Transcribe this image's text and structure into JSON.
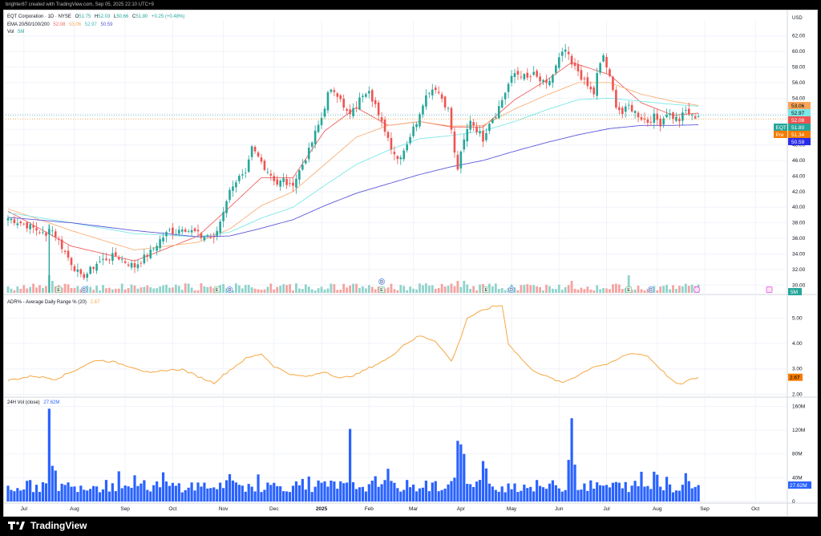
{
  "header": {
    "attribution": "brighter87 created with TradingView.com, Sep 05, 2025 22:10 UTC+9"
  },
  "footer": {
    "brand": "TradingView"
  },
  "colors": {
    "up": "#26a69a",
    "down": "#ef5350",
    "ema20": "#f0625d",
    "ema50": "#f8b07a",
    "ema100": "#7ee7e7",
    "ema200": "#5b57d9",
    "vol_up": "#8fd3cb",
    "vol_down": "#f5a3a0",
    "adr": "#f5a742",
    "vol24": "#2962ff"
  },
  "chart_data": [
    {
      "type": "candlestick",
      "legend": {
        "symbol_line": "EQT Corporation · 1D · NYSE",
        "ohlc": [
          {
            "key": "O",
            "value": "51.75"
          },
          {
            "key": "H",
            "value": "52.03"
          },
          {
            "key": "L",
            "value": "50.66"
          },
          {
            "key": "C",
            "value": "51.80"
          },
          {
            "key": "",
            "value": "+0.25 (+0.48%)"
          }
        ],
        "ema_label": "EMA 20/50/100/200",
        "ema_values": [
          {
            "value": "52.08",
            "color": "#f0625d"
          },
          {
            "value": "53.06",
            "color": "#f8b07a"
          },
          {
            "value": "52.97",
            "color": "#7ee7e7"
          },
          {
            "value": "50.59",
            "color": "#5b57d9"
          }
        ],
        "vol_label": "Vol",
        "vol_value": "5M"
      },
      "currency": "USD",
      "y_ticks": [
        62,
        60,
        58,
        56,
        54,
        52,
        50,
        48,
        46,
        44,
        42,
        40,
        38,
        36,
        34,
        32,
        30
      ],
      "ylim": [
        29,
        63
      ],
      "price_labels": [
        {
          "text": "53.06",
          "value": 53.06,
          "bg": "#f8a55a",
          "fg": "#000000"
        },
        {
          "text": "52.97",
          "value": 52.97,
          "bg": "#7ee7e7",
          "fg": "#000000"
        },
        {
          "text": "52.08",
          "value": 52.08,
          "bg": "#ef5350",
          "fg": "#ffffff"
        },
        {
          "text": "51.80",
          "value": 51.8,
          "bg": "#26a69a",
          "fg": "#ffffff",
          "tag": "EQT"
        },
        {
          "text": "51.34",
          "value": 51.34,
          "bg": "#f57c00",
          "fg": "#ffffff",
          "tag": "Pre"
        },
        {
          "text": "50.59",
          "value": 50.59,
          "bg": "#2a2aeb",
          "fg": "#ffffff"
        }
      ],
      "volume_label": "5M",
      "anchors": [
        [
          0,
          38.6
        ],
        [
          4,
          38.0
        ],
        [
          8,
          37.3
        ],
        [
          10,
          36.9
        ],
        [
          12,
          36.2
        ],
        [
          13,
          37.6
        ],
        [
          15,
          36.4
        ],
        [
          18,
          34.2
        ],
        [
          21,
          32.2
        ],
        [
          23,
          31.0
        ],
        [
          25,
          31.5
        ],
        [
          28,
          32.8
        ],
        [
          31,
          33.4
        ],
        [
          34,
          33.8
        ],
        [
          37,
          33.0
        ],
        [
          40,
          32.4
        ],
        [
          42,
          33.2
        ],
        [
          45,
          34.2
        ],
        [
          48,
          35.8
        ],
        [
          51,
          37.0
        ],
        [
          53,
          36.8
        ],
        [
          55,
          37.5
        ],
        [
          57,
          37.0
        ],
        [
          59,
          36.8
        ],
        [
          61,
          36.2
        ],
        [
          63,
          36.4
        ],
        [
          65,
          35.8
        ],
        [
          67,
          38.2
        ],
        [
          69,
          41.0
        ],
        [
          71,
          43.0
        ],
        [
          73,
          43.8
        ],
        [
          75,
          44.0
        ],
        [
          77,
          47.5
        ],
        [
          79,
          46.4
        ],
        [
          81,
          45.2
        ],
        [
          83,
          44.2
        ],
        [
          85,
          43.0
        ],
        [
          87,
          43.5
        ],
        [
          89,
          42.6
        ],
        [
          91,
          43.8
        ],
        [
          93,
          45.5
        ],
        [
          95,
          47.2
        ],
        [
          97,
          49.5
        ],
        [
          99,
          51.5
        ],
        [
          101,
          54.5
        ],
        [
          103,
          55.0
        ],
        [
          105,
          54.2
        ],
        [
          106,
          52.6
        ],
        [
          108,
          51.8
        ],
        [
          110,
          53.0
        ],
        [
          112,
          54.6
        ],
        [
          114,
          55.3
        ],
        [
          115,
          54.0
        ],
        [
          116,
          53.2
        ],
        [
          117,
          51.5
        ],
        [
          119,
          50.0
        ],
        [
          121,
          47.8
        ],
        [
          123,
          46.2
        ],
        [
          125,
          47.4
        ],
        [
          127,
          49.2
        ],
        [
          129,
          51.0
        ],
        [
          131,
          53.5
        ],
        [
          133,
          55.0
        ],
        [
          135,
          55.4
        ],
        [
          137,
          54.0
        ],
        [
          139,
          52.5
        ],
        [
          140,
          50.0
        ],
        [
          141,
          46.8
        ],
        [
          142,
          45.0
        ],
        [
          144,
          48.5
        ],
        [
          146,
          51.3
        ],
        [
          148,
          50.0
        ],
        [
          150,
          48.8
        ],
        [
          152,
          51.0
        ],
        [
          154,
          52.0
        ],
        [
          156,
          53.8
        ],
        [
          158,
          55.8
        ],
        [
          160,
          57.2
        ],
        [
          162,
          57.0
        ],
        [
          164,
          56.5
        ],
        [
          166,
          57.0
        ],
        [
          168,
          56.2
        ],
        [
          170,
          55.6
        ],
        [
          172,
          57.0
        ],
        [
          174,
          59.0
        ],
        [
          176,
          60.2
        ],
        [
          178,
          58.2
        ],
        [
          180,
          57.5
        ],
        [
          182,
          56.0
        ],
        [
          184,
          55.0
        ],
        [
          185,
          54.6
        ],
        [
          186,
          57.0
        ],
        [
          188,
          59.5
        ],
        [
          190,
          56.5
        ],
        [
          192,
          53.2
        ],
        [
          194,
          52.0
        ],
        [
          196,
          53.0
        ],
        [
          198,
          52.2
        ],
        [
          200,
          51.5
        ],
        [
          202,
          51.0
        ],
        [
          204,
          51.6
        ],
        [
          206,
          50.8
        ],
        [
          208,
          52.2
        ],
        [
          210,
          51.6
        ],
        [
          212,
          51.2
        ],
        [
          214,
          52.4
        ],
        [
          216,
          51.6
        ],
        [
          218,
          51.8
        ]
      ],
      "ema_series": [
        {
          "name": "EMA 20",
          "anchors": [
            [
              0,
              39.5
            ],
            [
              20,
              35.0
            ],
            [
              40,
              33.1
            ],
            [
              60,
              36.3
            ],
            [
              70,
              40.0
            ],
            [
              80,
              43.8
            ],
            [
              90,
              43.8
            ],
            [
              100,
              49.8
            ],
            [
              110,
              52.8
            ],
            [
              120,
              50.5
            ],
            [
              130,
              51.0
            ],
            [
              140,
              50.3
            ],
            [
              150,
              50.3
            ],
            [
              160,
              53.8
            ],
            [
              170,
              56.3
            ],
            [
              178,
              58.6
            ],
            [
              190,
              57.0
            ],
            [
              200,
              53.4
            ],
            [
              210,
              51.8
            ],
            [
              218,
              52.08
            ]
          ]
        },
        {
          "name": "EMA 50",
          "anchors": [
            [
              0,
              39.8
            ],
            [
              20,
              37.0
            ],
            [
              40,
              34.5
            ],
            [
              60,
              35.5
            ],
            [
              70,
              37.2
            ],
            [
              80,
              40.2
            ],
            [
              90,
              42.0
            ],
            [
              100,
              45.5
            ],
            [
              110,
              49.0
            ],
            [
              120,
              50.5
            ],
            [
              130,
              51.0
            ],
            [
              140,
              50.4
            ],
            [
              150,
              50.5
            ],
            [
              160,
              52.6
            ],
            [
              170,
              54.4
            ],
            [
              180,
              56.0
            ],
            [
              190,
              56.0
            ],
            [
              200,
              54.5
            ],
            [
              210,
              53.6
            ],
            [
              218,
              53.06
            ]
          ]
        },
        {
          "name": "EMA 100",
          "anchors": [
            [
              0,
              39.3
            ],
            [
              20,
              38.0
            ],
            [
              40,
              36.6
            ],
            [
              60,
              36.2
            ],
            [
              70,
              36.8
            ],
            [
              80,
              38.6
            ],
            [
              90,
              40.0
            ],
            [
              100,
              42.8
            ],
            [
              110,
              45.5
            ],
            [
              120,
              47.3
            ],
            [
              130,
              48.8
            ],
            [
              140,
              49.2
            ],
            [
              150,
              49.8
            ],
            [
              160,
              51.0
            ],
            [
              170,
              52.5
            ],
            [
              180,
              53.8
            ],
            [
              190,
              54.0
            ],
            [
              200,
              53.6
            ],
            [
              210,
              53.2
            ],
            [
              218,
              52.97
            ]
          ]
        },
        {
          "name": "EMA 200",
          "anchors": [
            [
              0,
              38.7
            ],
            [
              20,
              38.0
            ],
            [
              40,
              37.0
            ],
            [
              60,
              36.2
            ],
            [
              70,
              36.3
            ],
            [
              80,
              37.3
            ],
            [
              90,
              38.4
            ],
            [
              100,
              40.2
            ],
            [
              110,
              41.8
            ],
            [
              120,
              43.0
            ],
            [
              130,
              44.2
            ],
            [
              140,
              45.2
            ],
            [
              150,
              46.0
            ],
            [
              160,
              47.2
            ],
            [
              170,
              48.3
            ],
            [
              180,
              49.3
            ],
            [
              190,
              50.1
            ],
            [
              200,
              50.5
            ],
            [
              210,
              50.5
            ],
            [
              218,
              50.59
            ]
          ]
        }
      ],
      "events": [
        {
          "label": "E",
          "bar": 16,
          "kind": "earnings"
        },
        {
          "label": "D",
          "bar": 24,
          "kind": "dividend"
        },
        {
          "label": "E",
          "bar": 66,
          "kind": "earnings"
        },
        {
          "label": "D",
          "bar": 70,
          "kind": "dividend"
        },
        {
          "label": "E",
          "bar": 118,
          "kind": "earnings"
        },
        {
          "label": "D",
          "bar": 118,
          "kind": "dividend",
          "offset": 1
        },
        {
          "label": "E",
          "bar": 151,
          "kind": "earnings"
        },
        {
          "label": "D",
          "bar": 159,
          "kind": "dividend"
        },
        {
          "label": "E",
          "bar": 196,
          "kind": "earnings"
        },
        {
          "label": "D",
          "bar": 203,
          "kind": "dividend"
        }
      ]
    },
    {
      "type": "line",
      "name": "ADR% - Average Daily Range % (20)",
      "last_value": "2.67",
      "y_ticks": [
        5.0,
        4.0,
        3.0,
        2.0
      ],
      "y_tick_labels": [
        "5.00",
        "4.00",
        "3.00",
        "2.00"
      ],
      "ylim": [
        1.95,
        5.8
      ],
      "anchors": [
        [
          0,
          2.55
        ],
        [
          8,
          2.72
        ],
        [
          15,
          2.6
        ],
        [
          20,
          2.88
        ],
        [
          25,
          3.18
        ],
        [
          28,
          3.35
        ],
        [
          33,
          3.28
        ],
        [
          40,
          3.05
        ],
        [
          45,
          2.82
        ],
        [
          50,
          2.95
        ],
        [
          55,
          2.98
        ],
        [
          60,
          2.7
        ],
        [
          65,
          2.45
        ],
        [
          70,
          2.95
        ],
        [
          75,
          3.4
        ],
        [
          80,
          3.6
        ],
        [
          84,
          3.1
        ],
        [
          90,
          2.75
        ],
        [
          95,
          2.7
        ],
        [
          100,
          2.9
        ],
        [
          105,
          2.62
        ],
        [
          110,
          2.78
        ],
        [
          115,
          3.1
        ],
        [
          120,
          3.4
        ],
        [
          125,
          3.95
        ],
        [
          130,
          4.3
        ],
        [
          135,
          4.1
        ],
        [
          140,
          3.3
        ],
        [
          142,
          3.9
        ],
        [
          145,
          5.0
        ],
        [
          150,
          5.3
        ],
        [
          153,
          5.45
        ],
        [
          156,
          5.5
        ],
        [
          158,
          4.0
        ],
        [
          160,
          3.7
        ],
        [
          165,
          3.0
        ],
        [
          170,
          2.7
        ],
        [
          175,
          2.45
        ],
        [
          180,
          2.75
        ],
        [
          185,
          3.1
        ],
        [
          190,
          3.2
        ],
        [
          195,
          3.55
        ],
        [
          198,
          3.62
        ],
        [
          202,
          3.5
        ],
        [
          206,
          3.0
        ],
        [
          210,
          2.5
        ],
        [
          212,
          2.38
        ],
        [
          215,
          2.55
        ],
        [
          218,
          2.67
        ]
      ]
    },
    {
      "type": "bar",
      "name": "24H Vol (close)",
      "last_value": "27.62M",
      "y_ticks": [
        160,
        120,
        80,
        40,
        0
      ],
      "y_tick_labels": [
        "160M",
        "120M",
        "80M",
        "40M",
        "0"
      ],
      "ylim": [
        0,
        170
      ],
      "baseline": 28,
      "spikes": [
        [
          13,
          156
        ],
        [
          14,
          60
        ],
        [
          15,
          52
        ],
        [
          108,
          122
        ],
        [
          142,
          102
        ],
        [
          143,
          96
        ],
        [
          144,
          80
        ],
        [
          178,
          140
        ],
        [
          177,
          70
        ],
        [
          179,
          62
        ],
        [
          120,
          55
        ],
        [
          150,
          60
        ],
        [
          70,
          46
        ],
        [
          95,
          42
        ],
        [
          200,
          50
        ],
        [
          205,
          45
        ],
        [
          150,
          68
        ]
      ],
      "last_bar_value": 27.62
    }
  ],
  "x_axis": {
    "labels": [
      {
        "text": "Jul",
        "bar": 5
      },
      {
        "text": "Aug",
        "bar": 21
      },
      {
        "text": "Sep",
        "bar": 37
      },
      {
        "text": "Oct",
        "bar": 52
      },
      {
        "text": "Nov",
        "bar": 68
      },
      {
        "text": "Dec",
        "bar": 84
      },
      {
        "text": "2025",
        "bar": 99,
        "bold": true
      },
      {
        "text": "Feb",
        "bar": 114
      },
      {
        "text": "Mar",
        "bar": 128
      },
      {
        "text": "Apr",
        "bar": 143
      },
      {
        "text": "May",
        "bar": 159
      },
      {
        "text": "Jun",
        "bar": 174
      },
      {
        "text": "Jul",
        "bar": 189
      },
      {
        "text": "Aug",
        "bar": 205
      },
      {
        "text": "Sep",
        "bar": 220
      },
      {
        "text": "Oct",
        "bar": 236
      }
    ]
  }
}
